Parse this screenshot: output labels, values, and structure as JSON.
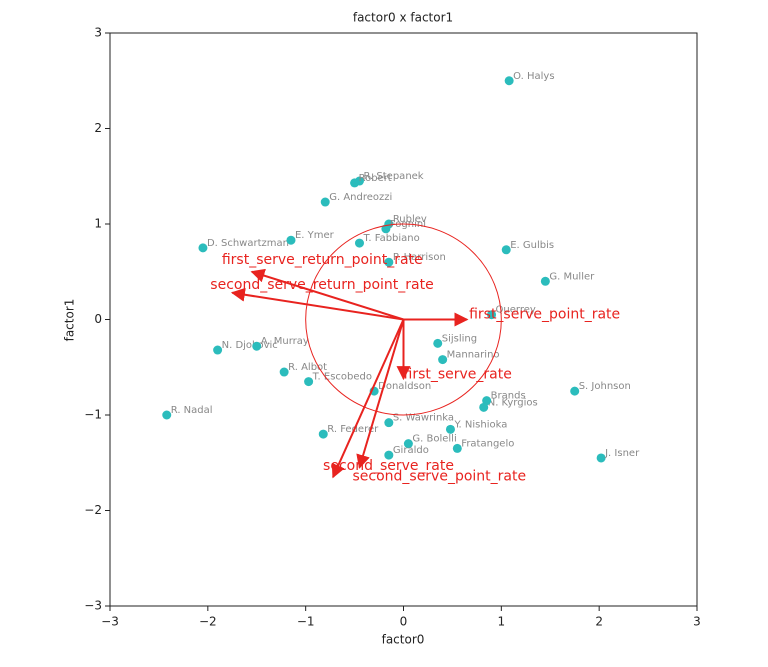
{
  "chart_data": {
    "type": "scatter",
    "title": "factor0 x factor1",
    "x_label": "factor0",
    "y_label": "factor1",
    "xlim": [
      -3,
      3
    ],
    "ylim": [
      -3,
      3
    ],
    "xticks": [
      {
        "value": -3,
        "label": "−3"
      },
      {
        "value": -2,
        "label": "−2"
      },
      {
        "value": -1,
        "label": "−1"
      },
      0,
      1,
      2,
      3
    ],
    "yticks": [
      {
        "value": -3,
        "label": "−3"
      },
      {
        "value": -2,
        "label": "−2"
      },
      {
        "value": -1,
        "label": "−1"
      },
      0,
      1,
      2,
      3
    ],
    "point_color": "#2bbcbc",
    "points": {
      "names": [
        "O. Halys",
        "R. Stepanek",
        "Robert",
        "G. Andreozzi",
        "Rublev",
        "Fognini",
        "D. Schwartzman",
        "E. Ymer",
        "T. Fabbiano",
        "E. Gulbis",
        "G. Muller",
        "P. Harrison",
        "N. Djokovic",
        "A. Murray",
        "R. Albot",
        "T. Escobedo",
        "R. Nadal",
        "S. Johnson",
        "J. Isner",
        "S. Wawrinka",
        "Y. Nishioka",
        "R. Federer",
        "G. Bolelli",
        "Fratangelo",
        "Giraldo",
        "Donaldson",
        "N. Kyrgios",
        "Brands",
        "Querrey",
        "Sijsling",
        "Mannarino"
      ],
      "x": [
        1.08,
        -0.45,
        -0.5,
        -0.8,
        -0.15,
        -0.18,
        -2.05,
        -1.15,
        -0.45,
        1.05,
        1.45,
        -0.15,
        -1.9,
        -1.5,
        -1.22,
        -0.97,
        -2.42,
        1.75,
        2.02,
        -0.15,
        0.48,
        -0.82,
        0.05,
        0.55,
        -0.15,
        -0.3,
        0.82,
        0.85,
        0.9,
        0.35,
        0.4
      ],
      "y": [
        2.5,
        1.45,
        1.43,
        1.23,
        1.0,
        0.95,
        0.75,
        0.83,
        0.8,
        0.73,
        0.4,
        0.6,
        -0.32,
        -0.28,
        -0.55,
        -0.65,
        -1.0,
        -0.75,
        -1.45,
        -1.08,
        -1.15,
        -1.2,
        -1.3,
        -1.35,
        -1.42,
        -0.75,
        -0.92,
        -0.85,
        0.05,
        -0.25,
        -0.42
      ]
    },
    "vector_color": "#e8231f",
    "circle_radius": 1,
    "vectors": [
      {
        "name": "first_serve_return_point_rate",
        "x": -1.55,
        "y": 0.5
      },
      {
        "name": "second_serve_return_point_rate",
        "x": -1.75,
        "y": 0.28
      },
      {
        "name": "first_serve_point_rate",
        "x": 0.65,
        "y": 0.0
      },
      {
        "name": "first_serve_rate",
        "x": 0.0,
        "y": -0.62
      },
      {
        "name": "second_serve_rate",
        "x": -0.72,
        "y": -1.65
      },
      {
        "name": "second_serve_point_rate",
        "x": -0.45,
        "y": -1.55
      }
    ]
  }
}
